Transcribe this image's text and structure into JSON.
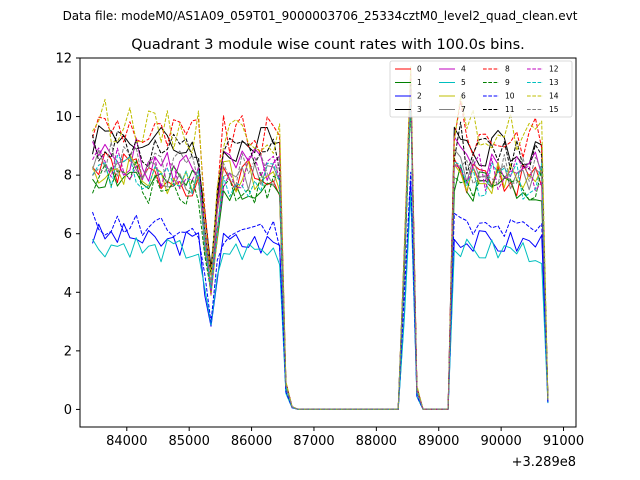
{
  "suptitle": "Data file: modeM0/AS1A09_059T01_9000003706_25334cztM0_level2_quad_clean.evt",
  "chart_data": {
    "type": "line",
    "title": "Quadrant 3 module wise count rates with 100.0s bins.",
    "xlabel": "",
    "ylabel": "",
    "x_offset_label": "+3.289e8",
    "xlim": [
      83250,
      91200
    ],
    "ylim": [
      -0.6,
      12
    ],
    "xticks": [
      84000,
      85000,
      86000,
      87000,
      88000,
      89000,
      90000,
      91000
    ],
    "xtick_labels": [
      "84000",
      "85000",
      "86000",
      "87000",
      "88000",
      "89000",
      "90000",
      "91000"
    ],
    "yticks": [
      0,
      2,
      4,
      6,
      8,
      10,
      12
    ],
    "ytick_labels": [
      "0",
      "2",
      "4",
      "6",
      "8",
      "10",
      "12"
    ],
    "legend_position": "top-right",
    "series": [
      {
        "name": "0",
        "color": "#ff0000",
        "dash": "solid",
        "level": 7.9,
        "spike": 10.9,
        "seed": 1
      },
      {
        "name": "1",
        "color": "#008000",
        "dash": "solid",
        "level": 7.7,
        "spike": 10.6,
        "seed": 2
      },
      {
        "name": "2",
        "color": "#0000ff",
        "dash": "solid",
        "level": 5.7,
        "spike": 7.8,
        "seed": 3
      },
      {
        "name": "3",
        "color": "#000000",
        "dash": "solid",
        "level": 9.0,
        "spike": 11.4,
        "seed": 4
      },
      {
        "name": "4",
        "color": "#bf00bf",
        "dash": "solid",
        "level": 8.3,
        "spike": 11.0,
        "seed": 5
      },
      {
        "name": "5",
        "color": "#00bfbf",
        "dash": "solid",
        "level": 5.4,
        "spike": 7.4,
        "seed": 6
      },
      {
        "name": "6",
        "color": "#bfbf00",
        "dash": "solid",
        "level": 7.9,
        "spike": 10.7,
        "seed": 7
      },
      {
        "name": "7",
        "color": "#808080",
        "dash": "solid",
        "level": 8.0,
        "spike": 10.8,
        "seed": 8
      },
      {
        "name": "8",
        "color": "#ff0000",
        "dash": "dashed",
        "level": 9.3,
        "spike": 11.6,
        "seed": 9
      },
      {
        "name": "9",
        "color": "#008000",
        "dash": "dashed",
        "level": 7.6,
        "spike": 10.5,
        "seed": 10
      },
      {
        "name": "10",
        "color": "#0000ff",
        "dash": "dashed",
        "level": 6.1,
        "spike": 8.1,
        "seed": 11
      },
      {
        "name": "11",
        "color": "#000000",
        "dash": "dashed",
        "level": 8.7,
        "spike": 11.2,
        "seed": 12
      },
      {
        "name": "12",
        "color": "#bf00bf",
        "dash": "dashed",
        "level": 8.1,
        "spike": 10.9,
        "seed": 13
      },
      {
        "name": "13",
        "color": "#00bfbf",
        "dash": "dashed",
        "level": 7.8,
        "spike": 10.6,
        "seed": 14
      },
      {
        "name": "14",
        "color": "#bfbf00",
        "dash": "dashed",
        "level": 9.5,
        "spike": 11.7,
        "seed": 15
      },
      {
        "name": "15",
        "color": "#808080",
        "dash": "dashed",
        "level": 8.2,
        "spike": 11.0,
        "seed": 16
      }
    ]
  }
}
